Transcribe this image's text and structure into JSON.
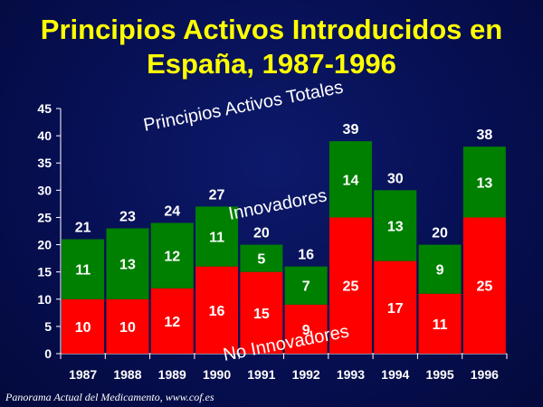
{
  "slide": {
    "title_line1": "Principios Activos Introducidos en",
    "title_line2": "España, 1987-1996",
    "source": "Panorama Actual del Medicamento, www.cof.es"
  },
  "chart_data": {
    "type": "bar",
    "stacked": true,
    "categories": [
      "1987",
      "1988",
      "1989",
      "1990",
      "1991",
      "1992",
      "1993",
      "1994",
      "1995",
      "1996"
    ],
    "series": [
      {
        "name": "No Innovadores",
        "color": "#ff0000",
        "values": [
          10,
          10,
          12,
          16,
          15,
          9,
          25,
          17,
          11,
          25
        ]
      },
      {
        "name": "Innovadores",
        "color": "#008000",
        "values": [
          11,
          13,
          12,
          11,
          5,
          7,
          14,
          13,
          9,
          13
        ]
      }
    ],
    "totals": [
      21,
      23,
      24,
      27,
      20,
      16,
      39,
      30,
      20,
      38
    ],
    "totals_label": "Principios Activos Totales",
    "ylim": [
      0,
      45
    ],
    "yticks": [
      0,
      5,
      10,
      15,
      20,
      25,
      30,
      35,
      40,
      45
    ],
    "grid": false,
    "legend": "none"
  }
}
